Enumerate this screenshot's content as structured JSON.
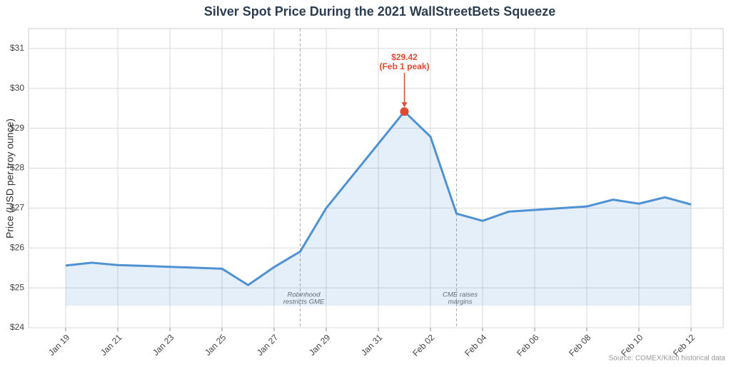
{
  "chart_data": {
    "type": "line",
    "title": "Silver Spot Price During the 2021 WallStreetBets Squeeze",
    "ylabel": "Price (USD per troy ounce)",
    "x": [
      "Jan 19",
      "Jan 20",
      "Jan 21",
      "Jan 22",
      "Jan 25",
      "Jan 26",
      "Jan 27",
      "Jan 28",
      "Jan 29",
      "Feb 01",
      "Feb 02",
      "Feb 03",
      "Feb 04",
      "Feb 05",
      "Feb 08",
      "Feb 09",
      "Feb 10",
      "Feb 11",
      "Feb 12"
    ],
    "values": [
      25.56,
      25.63,
      25.57,
      25.55,
      25.48,
      25.07,
      25.52,
      25.91,
      27.0,
      29.42,
      28.79,
      26.86,
      26.68,
      26.91,
      27.04,
      27.21,
      27.11,
      27.27,
      27.09
    ],
    "color": "#4f92d4",
    "ylim": [
      24,
      31.5
    ],
    "yticks": [
      {
        "value": 24,
        "label": "$24"
      },
      {
        "value": 25,
        "label": "$25"
      },
      {
        "value": 26,
        "label": "$26"
      },
      {
        "value": 27,
        "label": "$27"
      },
      {
        "value": 28,
        "label": "$28"
      },
      {
        "value": 29,
        "label": "$29"
      },
      {
        "value": 30,
        "label": "$30"
      },
      {
        "value": 31,
        "label": "$31"
      }
    ],
    "xticks": [
      "Jan 19",
      "Jan 21",
      "Jan 23",
      "Jan 25",
      "Jan 27",
      "Jan 29",
      "Jan 31",
      "Feb 02",
      "Feb 04",
      "Feb 06",
      "Feb 08",
      "Feb 10",
      "Feb 12"
    ],
    "grid": true,
    "events": [
      {
        "x": "Jan 28",
        "lines": [
          "Robinhood",
          "restricts GME"
        ]
      },
      {
        "x": "Feb 03",
        "lines": [
          "CME raises",
          "margins"
        ]
      }
    ],
    "peak": {
      "x": "Feb 01",
      "color": "#e24a33",
      "lines": [
        "$29.42",
        "(Feb 1 peak)"
      ]
    },
    "source": "Source: COMEX/Kitco historical data"
  }
}
